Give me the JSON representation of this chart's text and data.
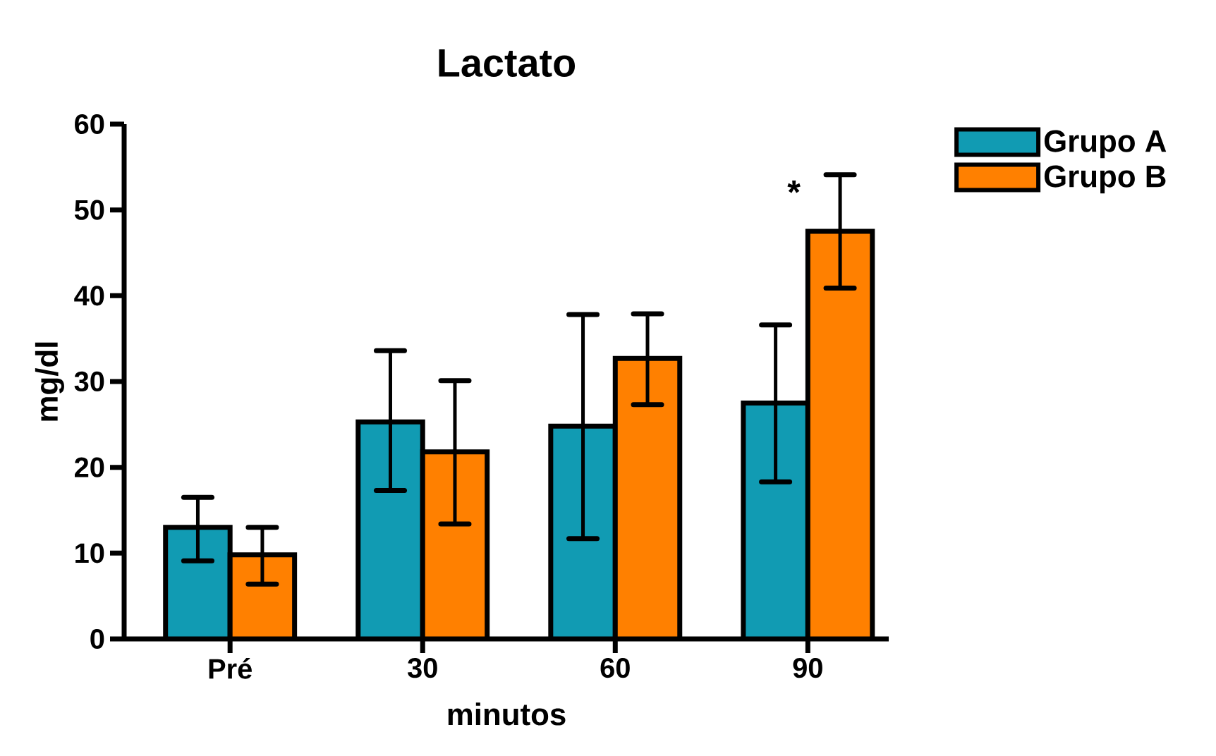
{
  "chart_data": {
    "type": "bar",
    "title": "Lactato",
    "xlabel": "minutos",
    "ylabel": "mg/dl",
    "categories": [
      "Pré",
      "30",
      "60",
      "90"
    ],
    "series": [
      {
        "name": "Grupo A",
        "color": "#119bb3",
        "values": [
          13.0,
          25.3,
          24.8,
          27.5
        ],
        "errors": [
          [
            9.1,
            16.5
          ],
          [
            17.3,
            33.6
          ],
          [
            11.7,
            37.8
          ],
          [
            18.3,
            36.6
          ]
        ]
      },
      {
        "name": "Grupo B",
        "color": "#ff8000",
        "values": [
          9.8,
          21.8,
          32.7,
          47.5
        ],
        "errors": [
          [
            6.4,
            13.0
          ],
          [
            13.4,
            30.1
          ],
          [
            27.3,
            37.9
          ],
          [
            40.9,
            54.1
          ]
        ]
      }
    ],
    "ylim": [
      0,
      60
    ],
    "yticks": [
      0,
      10,
      20,
      30,
      40,
      50,
      60
    ],
    "legend": "top right",
    "annotations": [
      "*"
    ]
  }
}
